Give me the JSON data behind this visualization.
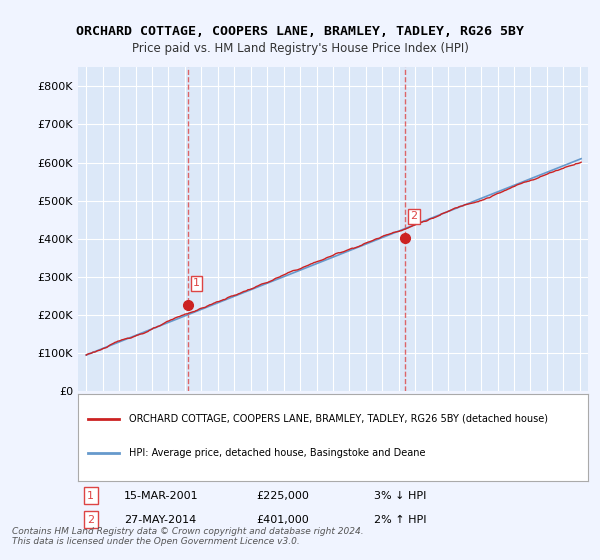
{
  "title": "ORCHARD COTTAGE, COOPERS LANE, BRAMLEY, TADLEY, RG26 5BY",
  "subtitle": "Price paid vs. HM Land Registry's House Price Index (HPI)",
  "ylim": [
    0,
    850000
  ],
  "yticks": [
    0,
    100000,
    200000,
    300000,
    400000,
    500000,
    600000,
    700000,
    800000
  ],
  "ytick_labels": [
    "£0",
    "£100K",
    "£200K",
    "£300K",
    "£400K",
    "£500K",
    "£600K",
    "£700K",
    "£800K"
  ],
  "hpi_color": "#6699cc",
  "price_color": "#cc2222",
  "marker_color": "#cc2222",
  "sale1": {
    "date_num": 2001.2,
    "price": 225000,
    "label": "1"
  },
  "sale2": {
    "date_num": 2014.4,
    "price": 401000,
    "label": "2"
  },
  "vline_color": "#dd4444",
  "legend_label1": "ORCHARD COTTAGE, COOPERS LANE, BRAMLEY, TADLEY, RG26 5BY (detached house)",
  "legend_label2": "HPI: Average price, detached house, Basingstoke and Deane",
  "table_rows": [
    {
      "num": "1",
      "date": "15-MAR-2001",
      "price": "£225,000",
      "change": "3% ↓ HPI"
    },
    {
      "num": "2",
      "date": "27-MAY-2014",
      "price": "£401,000",
      "change": "2% ↑ HPI"
    }
  ],
  "footnote": "Contains HM Land Registry data © Crown copyright and database right 2024.\nThis data is licensed under the Open Government Licence v3.0.",
  "background_color": "#f0f4ff",
  "plot_bg_color": "#dce8f8",
  "grid_color": "#ffffff"
}
